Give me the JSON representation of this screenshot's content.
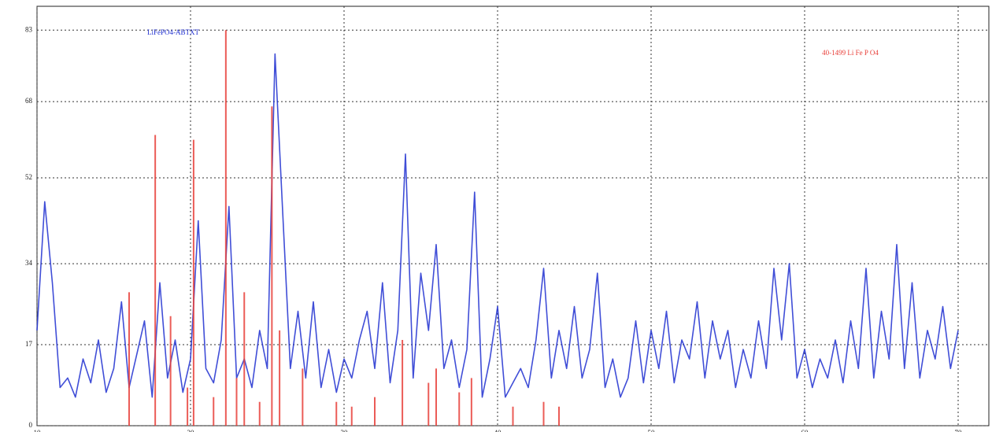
{
  "chart_data": {
    "type": "line",
    "xlim": [
      10,
      72
    ],
    "ylim": [
      0,
      88
    ],
    "xticks": [
      10,
      20,
      30,
      40,
      50,
      60,
      70
    ],
    "yticks": [
      0,
      17,
      34,
      52,
      68,
      83
    ],
    "grid": true,
    "series": [
      {
        "name": "LiFePO4-ABTXT",
        "color": "#1f2fd0",
        "mode": "line",
        "x": [
          10,
          10.5,
          11,
          11.5,
          12,
          12.5,
          13,
          13.5,
          14,
          14.5,
          15,
          15.5,
          16,
          16.5,
          17,
          17.5,
          18,
          18.5,
          19,
          19.5,
          20,
          20.5,
          21,
          21.5,
          22,
          22.5,
          23,
          23.5,
          24,
          24.5,
          25,
          25.5,
          26,
          26.5,
          27,
          27.5,
          28,
          28.5,
          29,
          29.5,
          30,
          30.5,
          31,
          31.5,
          32,
          32.5,
          33,
          33.5,
          34,
          34.5,
          35,
          35.5,
          36,
          36.5,
          37,
          37.5,
          38,
          38.5,
          39,
          39.5,
          40,
          40.5,
          41,
          41.5,
          42,
          42.5,
          43,
          43.5,
          44,
          44.5,
          45,
          45.5,
          46,
          46.5,
          47,
          47.5,
          48,
          48.5,
          49,
          49.5,
          50,
          50.5,
          51,
          51.5,
          52,
          52.5,
          53,
          53.5,
          54,
          54.5,
          55,
          55.5,
          56,
          56.5,
          57,
          57.5,
          58,
          58.5,
          59,
          59.5,
          60,
          60.5,
          61,
          61.5,
          62,
          62.5,
          63,
          63.5,
          64,
          64.5,
          65,
          65.5,
          66,
          66.5,
          67,
          67.5,
          68,
          68.5,
          69,
          69.5,
          70
        ],
        "values": [
          20,
          47,
          30,
          8,
          10,
          6,
          14,
          9,
          18,
          7,
          12,
          26,
          8,
          15,
          22,
          6,
          30,
          10,
          18,
          7,
          14,
          43,
          12,
          9,
          18,
          46,
          10,
          14,
          8,
          20,
          12,
          78,
          45,
          12,
          24,
          10,
          26,
          8,
          16,
          7,
          14,
          10,
          18,
          24,
          12,
          30,
          9,
          20,
          57,
          10,
          32,
          20,
          38,
          12,
          18,
          8,
          16,
          49,
          6,
          14,
          25,
          6,
          9,
          12,
          8,
          18,
          33,
          10,
          20,
          12,
          25,
          10,
          16,
          32,
          8,
          14,
          6,
          10,
          22,
          9,
          20,
          12,
          24,
          9,
          18,
          14,
          26,
          10,
          22,
          14,
          20,
          8,
          16,
          10,
          22,
          12,
          33,
          18,
          34,
          10,
          16,
          8,
          14,
          10,
          18,
          9,
          22,
          12,
          33,
          10,
          24,
          14,
          38,
          12,
          30,
          10,
          20,
          14,
          25,
          12,
          20
        ]
      },
      {
        "name": "40-1499 Li Fe P O4",
        "color": "#e8403a",
        "mode": "stick",
        "x": [
          16.0,
          17.7,
          18.7,
          19.8,
          20.2,
          21.5,
          22.3,
          23.0,
          23.5,
          24.5,
          25.3,
          25.8,
          27.3,
          29.5,
          30.5,
          32.0,
          33.8,
          35.5,
          36.0,
          37.5,
          38.3,
          41.0,
          43.0,
          44.0
        ],
        "values": [
          28,
          61,
          23,
          8,
          60,
          6,
          83,
          10,
          28,
          5,
          67,
          20,
          12,
          5,
          4,
          6,
          18,
          9,
          12,
          7,
          10,
          4,
          5,
          4
        ]
      }
    ]
  }
}
